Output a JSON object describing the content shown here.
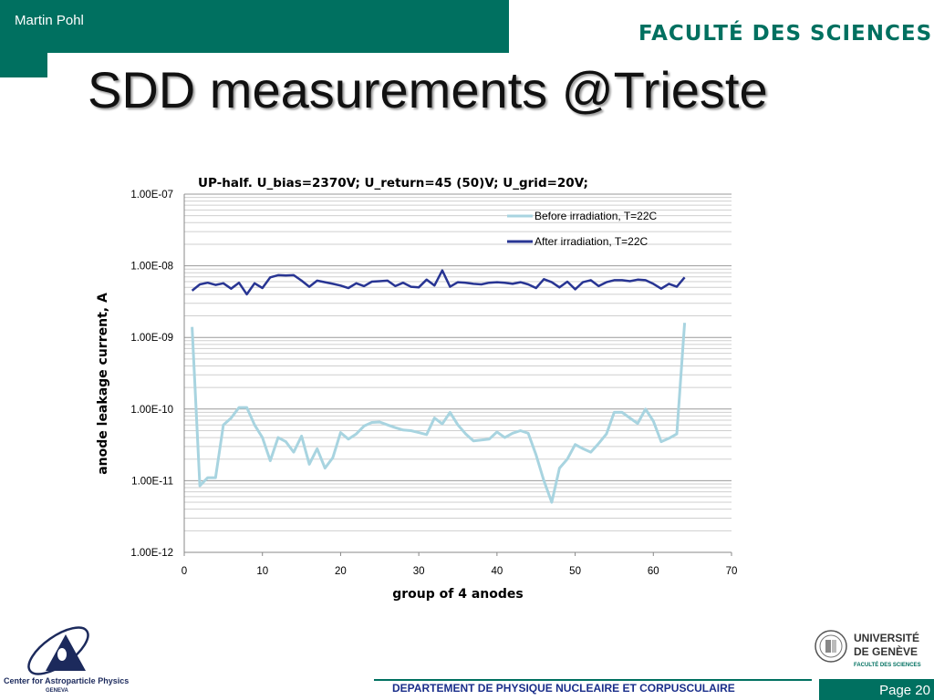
{
  "header": {
    "author": "Martin Pohl",
    "faculty": "FACULTÉ DES SCIENCES",
    "title": "SDD measurements @Trieste"
  },
  "footer": {
    "department": "DEPARTEMENT DE PHYSIQUE NUCLEAIRE ET CORPUSCULAIRE",
    "page": "Page 20",
    "cap_name": "Center for Astroparticle Physics",
    "cap_city": "GENEVA",
    "unige_name_1": "UNIVERSITÉ",
    "unige_name_2": "DE GENÈVE",
    "unige_faculty": "FACULTÉ DES SCIENCES"
  },
  "colors": {
    "brand_green": "#007060",
    "before_series": "#a8d4e0",
    "after_series": "#283593",
    "department_text": "#1a2e8a"
  },
  "chart_data": {
    "type": "line",
    "title": "UP-half.   U_bias=2370V; U_return=45 (50)V; U_grid=20V;",
    "xlabel": "group of 4 anodes",
    "ylabel": "anode leakage current, A",
    "xlim": [
      0,
      70
    ],
    "x_ticks": [
      0,
      10,
      20,
      30,
      40,
      50,
      60,
      70
    ],
    "ylim": [
      1e-12,
      1e-07
    ],
    "y_scale": "log",
    "y_tick_values": [
      1e-12,
      1e-11,
      1e-10,
      1e-09,
      1e-08,
      1e-07
    ],
    "y_tick_labels": [
      "1.00E-12",
      "1.00E-11",
      "1.00E-10",
      "1.00E-09",
      "1.00E-08",
      "1.00E-07"
    ],
    "grid": "horizontal major and minor",
    "legend_position": "top-right",
    "x": [
      1,
      2,
      3,
      4,
      5,
      6,
      7,
      8,
      9,
      10,
      11,
      12,
      13,
      14,
      15,
      16,
      17,
      18,
      19,
      20,
      21,
      22,
      23,
      24,
      25,
      26,
      27,
      28,
      29,
      30,
      31,
      32,
      33,
      34,
      35,
      36,
      37,
      38,
      39,
      40,
      41,
      42,
      43,
      44,
      45,
      46,
      47,
      48,
      49,
      50,
      51,
      52,
      53,
      54,
      55,
      56,
      57,
      58,
      59,
      60,
      61,
      62,
      63,
      64
    ],
    "series": [
      {
        "name": "Before irradiation, T=22C",
        "values": [
          1.4e-09,
          8.5e-12,
          1.1e-11,
          1.1e-11,
          6e-11,
          7.5e-11,
          1.05e-10,
          1.05e-10,
          6e-11,
          4e-11,
          1.9e-11,
          4e-11,
          3.5e-11,
          2.5e-11,
          4.2e-11,
          1.7e-11,
          2.8e-11,
          1.5e-11,
          2.1e-11,
          4.7e-11,
          3.8e-11,
          4.5e-11,
          5.8e-11,
          6.5e-11,
          6.6e-11,
          6e-11,
          5.5e-11,
          5.1e-11,
          5e-11,
          4.7e-11,
          4.4e-11,
          7.5e-11,
          6.2e-11,
          9e-11,
          6e-11,
          4.5e-11,
          3.6e-11,
          3.7e-11,
          3.8e-11,
          4.8e-11,
          4e-11,
          4.6e-11,
          5e-11,
          4.6e-11,
          2.3e-11,
          1e-11,
          5e-12,
          1.5e-11,
          2e-11,
          3.2e-11,
          2.8e-11,
          2.5e-11,
          3.3e-11,
          4.5e-11,
          9e-11,
          9e-11,
          7.5e-11,
          6.3e-11,
          1e-10,
          6.8e-11,
          3.5e-11,
          3.9e-11,
          4.5e-11,
          1.6e-09
        ]
      },
      {
        "name": "After irradiation, T=22C",
        "values": [
          4.5e-09,
          5.5e-09,
          5.8e-09,
          5.4e-09,
          5.7e-09,
          4.8e-09,
          5.8e-09,
          4e-09,
          5.7e-09,
          4.9e-09,
          6.9e-09,
          7.4e-09,
          7.3e-09,
          7.4e-09,
          6.2e-09,
          5.1e-09,
          6.2e-09,
          5.9e-09,
          5.6e-09,
          5.3e-09,
          4.9e-09,
          5.7e-09,
          5.2e-09,
          6e-09,
          6.1e-09,
          6.2e-09,
          5.2e-09,
          5.8e-09,
          5.1e-09,
          5e-09,
          6.4e-09,
          5.3e-09,
          8.6e-09,
          5.1e-09,
          5.9e-09,
          5.8e-09,
          5.6e-09,
          5.5e-09,
          5.8e-09,
          5.9e-09,
          5.8e-09,
          5.6e-09,
          5.9e-09,
          5.5e-09,
          4.9e-09,
          6.5e-09,
          5.9e-09,
          5e-09,
          6e-09,
          4.7e-09,
          5.9e-09,
          6.3e-09,
          5.2e-09,
          5.9e-09,
          6.3e-09,
          6.3e-09,
          6.1e-09,
          6.4e-09,
          6.3e-09,
          5.6e-09,
          4.8e-09,
          5.6e-09,
          5.1e-09,
          6.9e-09
        ]
      }
    ]
  }
}
